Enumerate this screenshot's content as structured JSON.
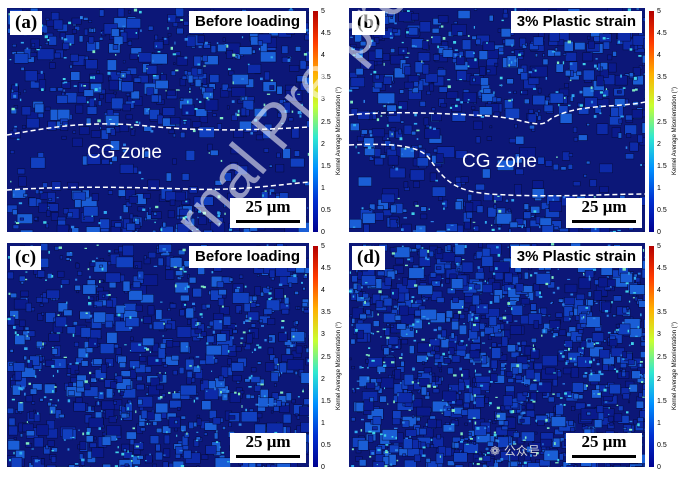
{
  "panels": [
    {
      "label": "(a)",
      "title": "Before loading",
      "scale": "25 μm",
      "zone": "CG zone"
    },
    {
      "label": "(b)",
      "title": "3% Plastic strain",
      "scale": "25 μm",
      "zone": "CG zone"
    },
    {
      "label": "(c)",
      "title": "Before loading",
      "scale": "25 μm"
    },
    {
      "label": "(d)",
      "title": "3% Plastic strain",
      "scale": "25 μm"
    }
  ],
  "colorbar": {
    "title": "Kernel Average Misorientation (°)",
    "ticks": [
      "5",
      "4.5",
      "4",
      "3.5",
      "3",
      "2.5",
      "2",
      "1.5",
      "1",
      "0.5",
      "0"
    ],
    "colors": [
      "#b30000",
      "#ff3b00",
      "#ffb000",
      "#c8ff30",
      "#30e8d0",
      "#0090ff",
      "#0030d0",
      "#00008f"
    ]
  },
  "watermark": "rnal Pre-proof",
  "wechat_label": "公众号"
}
